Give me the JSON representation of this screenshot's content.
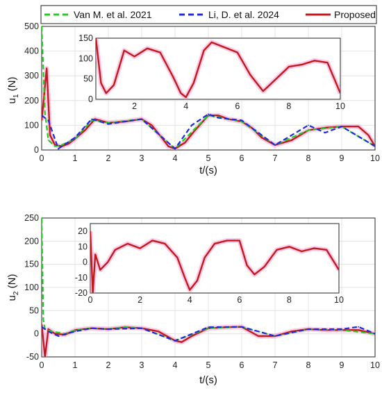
{
  "colors": {
    "van": "#22cc22",
    "li": "#1a2be0",
    "proposed": "#c01a1a",
    "highlight": "#ff8ccf",
    "axis": "#222222",
    "grid": "#dddddd"
  },
  "legend": {
    "items": [
      {
        "label": "Van M. et al. 2021",
        "style": "dashed",
        "color_key": "van"
      },
      {
        "label": "Li, D. et al. 2024",
        "style": "dashed",
        "color_key": "li"
      },
      {
        "label": "Proposed",
        "style": "solid",
        "color_key": "proposed"
      }
    ]
  },
  "chart_data": [
    {
      "type": "line",
      "id": "u1_main",
      "xlabel": "t/(s)",
      "ylabel_main": "u",
      "ylabel_sub": "1",
      "ylabel_unit": " (N)",
      "xlim": [
        0,
        10
      ],
      "ylim": [
        0,
        500
      ],
      "xticks": [
        0,
        1,
        2,
        3,
        4,
        5,
        6,
        7,
        8,
        9,
        10
      ],
      "yticks": [
        0,
        100,
        200,
        300,
        400,
        500
      ],
      "grid": true,
      "series": [
        {
          "name": "Proposed",
          "color_key": "proposed",
          "style": "solid",
          "x": [
            0,
            0.15,
            0.25,
            0.4,
            0.6,
            0.8,
            1.0,
            1.3,
            1.6,
            2.0,
            2.5,
            3.0,
            3.3,
            3.6,
            3.8,
            4.0,
            4.3,
            4.6,
            5.0,
            5.3,
            5.6,
            6.0,
            6.3,
            6.6,
            7.0,
            7.5,
            8.0,
            8.5,
            9.0,
            9.5,
            9.8,
            10.0
          ],
          "y": [
            120,
            330,
            60,
            20,
            15,
            25,
            45,
            80,
            125,
            110,
            115,
            125,
            100,
            50,
            15,
            5,
            30,
            80,
            140,
            140,
            125,
            115,
            90,
            50,
            20,
            40,
            80,
            90,
            95,
            95,
            60,
            15
          ]
        },
        {
          "name": "Van M. et al. 2021",
          "color_key": "van",
          "style": "dashed",
          "x": [
            0,
            0.1,
            0.2,
            0.4,
            0.6,
            1.0,
            1.5,
            2.0,
            3.0,
            4.0,
            5.0,
            6.0,
            7.0,
            8.0,
            9.0,
            10.0
          ],
          "y": [
            500,
            150,
            40,
            15,
            20,
            45,
            120,
            110,
            125,
            5,
            140,
            115,
            20,
            80,
            95,
            15
          ]
        },
        {
          "name": "Li, D. et al. 2024",
          "color_key": "li",
          "style": "dashed",
          "x": [
            0,
            0.2,
            0.5,
            1.0,
            1.5,
            2.0,
            3.0,
            4.0,
            4.5,
            5.0,
            5.3,
            6.0,
            7.0,
            8.0,
            8.5,
            9.0,
            10.0
          ],
          "y": [
            140,
            120,
            5,
            50,
            125,
            105,
            125,
            5,
            100,
            145,
            130,
            120,
            20,
            100,
            70,
            95,
            15
          ]
        }
      ]
    },
    {
      "type": "line",
      "id": "u1_inset",
      "xlim": [
        0.5,
        10
      ],
      "ylim": [
        0,
        150
      ],
      "xticks": [
        2,
        4,
        6,
        8,
        10
      ],
      "yticks": [
        0,
        50,
        100,
        150
      ],
      "series": [
        {
          "name": "Proposed",
          "color_key": "proposed",
          "style": "solid",
          "x": [
            0.5,
            0.7,
            0.9,
            1.2,
            1.6,
            2.0,
            2.5,
            3.0,
            3.5,
            3.8,
            4.0,
            4.3,
            4.7,
            5.0,
            5.4,
            6.0,
            6.5,
            7.0,
            7.5,
            8.0,
            8.5,
            9.0,
            9.5,
            10.0
          ],
          "y": [
            150,
            40,
            15,
            35,
            120,
            105,
            125,
            115,
            55,
            15,
            5,
            40,
            120,
            140,
            130,
            115,
            60,
            20,
            50,
            80,
            85,
            95,
            90,
            15
          ]
        }
      ]
    },
    {
      "type": "line",
      "id": "u2_main",
      "xlabel": "t/(s)",
      "ylabel_main": "u",
      "ylabel_sub": "2",
      "ylabel_unit": " (N)",
      "xlim": [
        0,
        10
      ],
      "ylim": [
        -50,
        250
      ],
      "xticks": [
        0,
        1,
        2,
        3,
        4,
        5,
        6,
        7,
        8,
        9,
        10
      ],
      "yticks": [
        -50,
        0,
        50,
        100,
        150,
        200,
        250
      ],
      "grid": true,
      "series": [
        {
          "name": "Proposed",
          "color_key": "proposed",
          "style": "solid",
          "x": [
            0,
            0.1,
            0.2,
            0.4,
            0.7,
            1.0,
            1.5,
            2.0,
            2.5,
            3.0,
            3.5,
            4.0,
            4.2,
            4.5,
            5.0,
            5.5,
            6.0,
            6.5,
            7.0,
            7.5,
            8.0,
            8.5,
            9.0,
            9.5,
            10.0
          ],
          "y": [
            20,
            -50,
            10,
            0,
            -2,
            8,
            12,
            10,
            14,
            12,
            5,
            -15,
            -18,
            -5,
            12,
            14,
            15,
            -5,
            -5,
            5,
            10,
            8,
            8,
            8,
            0
          ]
        },
        {
          "name": "Van M. et al. 2021",
          "color_key": "van",
          "style": "dashed",
          "x": [
            0,
            0.05,
            0.1,
            0.3,
            0.7,
            1.0,
            1.5,
            2.0,
            2.5,
            3.0,
            4.0,
            5.0,
            6.0,
            7.0,
            8.0,
            9.0,
            10.0
          ],
          "y": [
            250,
            30,
            10,
            5,
            0,
            8,
            12,
            10,
            15,
            12,
            -15,
            12,
            15,
            -5,
            10,
            8,
            0
          ]
        },
        {
          "name": "Li, D. et al. 2024",
          "color_key": "li",
          "style": "dashed",
          "x": [
            0,
            0.2,
            0.5,
            1.0,
            1.5,
            2.0,
            3.0,
            4.0,
            5.0,
            6.0,
            7.0,
            8.0,
            9.0,
            9.5,
            10.0
          ],
          "y": [
            15,
            5,
            -5,
            5,
            12,
            10,
            12,
            -15,
            14,
            15,
            -5,
            10,
            10,
            15,
            0
          ]
        }
      ]
    },
    {
      "type": "line",
      "id": "u2_inset",
      "xlim": [
        0,
        10
      ],
      "ylim": [
        -20,
        25
      ],
      "xticks": [
        0,
        2,
        4,
        6,
        8,
        10
      ],
      "yticks": [
        -20,
        -10,
        0,
        10,
        20
      ],
      "series": [
        {
          "name": "Proposed",
          "color_key": "proposed",
          "style": "solid",
          "x": [
            0,
            0.1,
            0.2,
            0.4,
            0.7,
            1.0,
            1.5,
            2.0,
            2.5,
            3.0,
            3.5,
            3.8,
            4.0,
            4.3,
            4.6,
            5.0,
            5.5,
            6.0,
            6.3,
            6.6,
            7.0,
            7.5,
            8.0,
            8.5,
            9.0,
            9.5,
            10.0
          ],
          "y": [
            20,
            -20,
            5,
            -5,
            0,
            8,
            12,
            9,
            14,
            12,
            3,
            -10,
            -18,
            -12,
            3,
            12,
            14,
            14,
            -2,
            -8,
            -3,
            8,
            10,
            7,
            9,
            8,
            -5
          ]
        }
      ]
    }
  ]
}
